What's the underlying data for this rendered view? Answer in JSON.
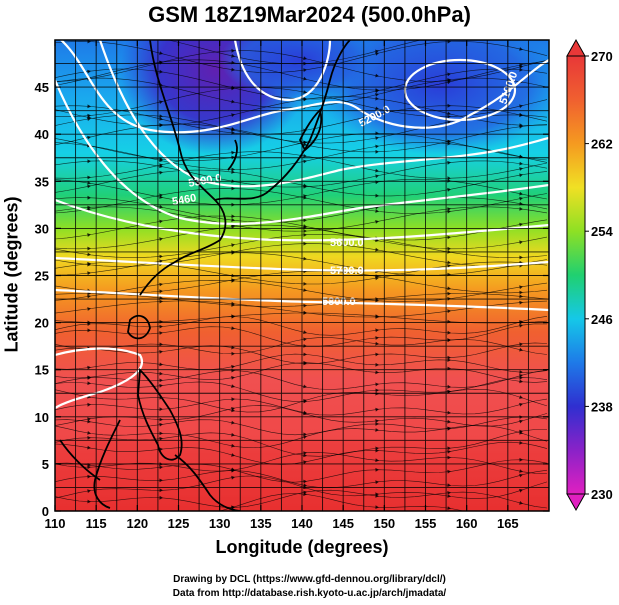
{
  "title": "GSM 18Z19Mar2024 (500.0hPa)",
  "xlabel": "Longitude (degrees)",
  "ylabel": "Latitude  (degrees)",
  "credits": [
    "Drawing by DCL (https://www.gfd-dennou.org/library/dcl/)",
    "Data from http://database.rish.kyoto-u.ac.jp/arch/jmadata/"
  ],
  "map": {
    "xlim": [
      110,
      170
    ],
    "ylim": [
      0,
      50
    ],
    "x_ticks": [
      "110",
      "115",
      "120",
      "125",
      "130",
      "135",
      "140",
      "145",
      "150",
      "155",
      "160",
      "165"
    ],
    "y_ticks": [
      "0",
      "5",
      "10",
      "15",
      "20",
      "25",
      "30",
      "35",
      "40",
      "45"
    ],
    "colorbar": {
      "range": [
        230,
        270
      ],
      "ticks": [
        "230",
        "238",
        "246",
        "254",
        "262",
        "270"
      ],
      "colors": [
        "#e020c0",
        "#8a22c8",
        "#2f2fd0",
        "#1e8ff0",
        "#15d2e8",
        "#2ed15e",
        "#8ee024",
        "#f0e024",
        "#f59a20",
        "#f06030",
        "#e83838"
      ]
    },
    "contour_labels": [
      {
        "text": "5200.0",
        "lon": 146,
        "lat": 43.2
      },
      {
        "text": "5300.0",
        "lon": 130.5,
        "lat": 37.2
      },
      {
        "text": "5460",
        "lon": 126.5,
        "lat": 35.3
      },
      {
        "text": "5600.0",
        "lon": 146,
        "lat": 30.5
      },
      {
        "text": "5700.0",
        "lon": 146,
        "lat": 27.4
      },
      {
        "text": "5800.0",
        "lon": 145,
        "lat": 24.2
      },
      {
        "text": "5190.0",
        "lon": 161,
        "lat": 45
      }
    ]
  }
}
